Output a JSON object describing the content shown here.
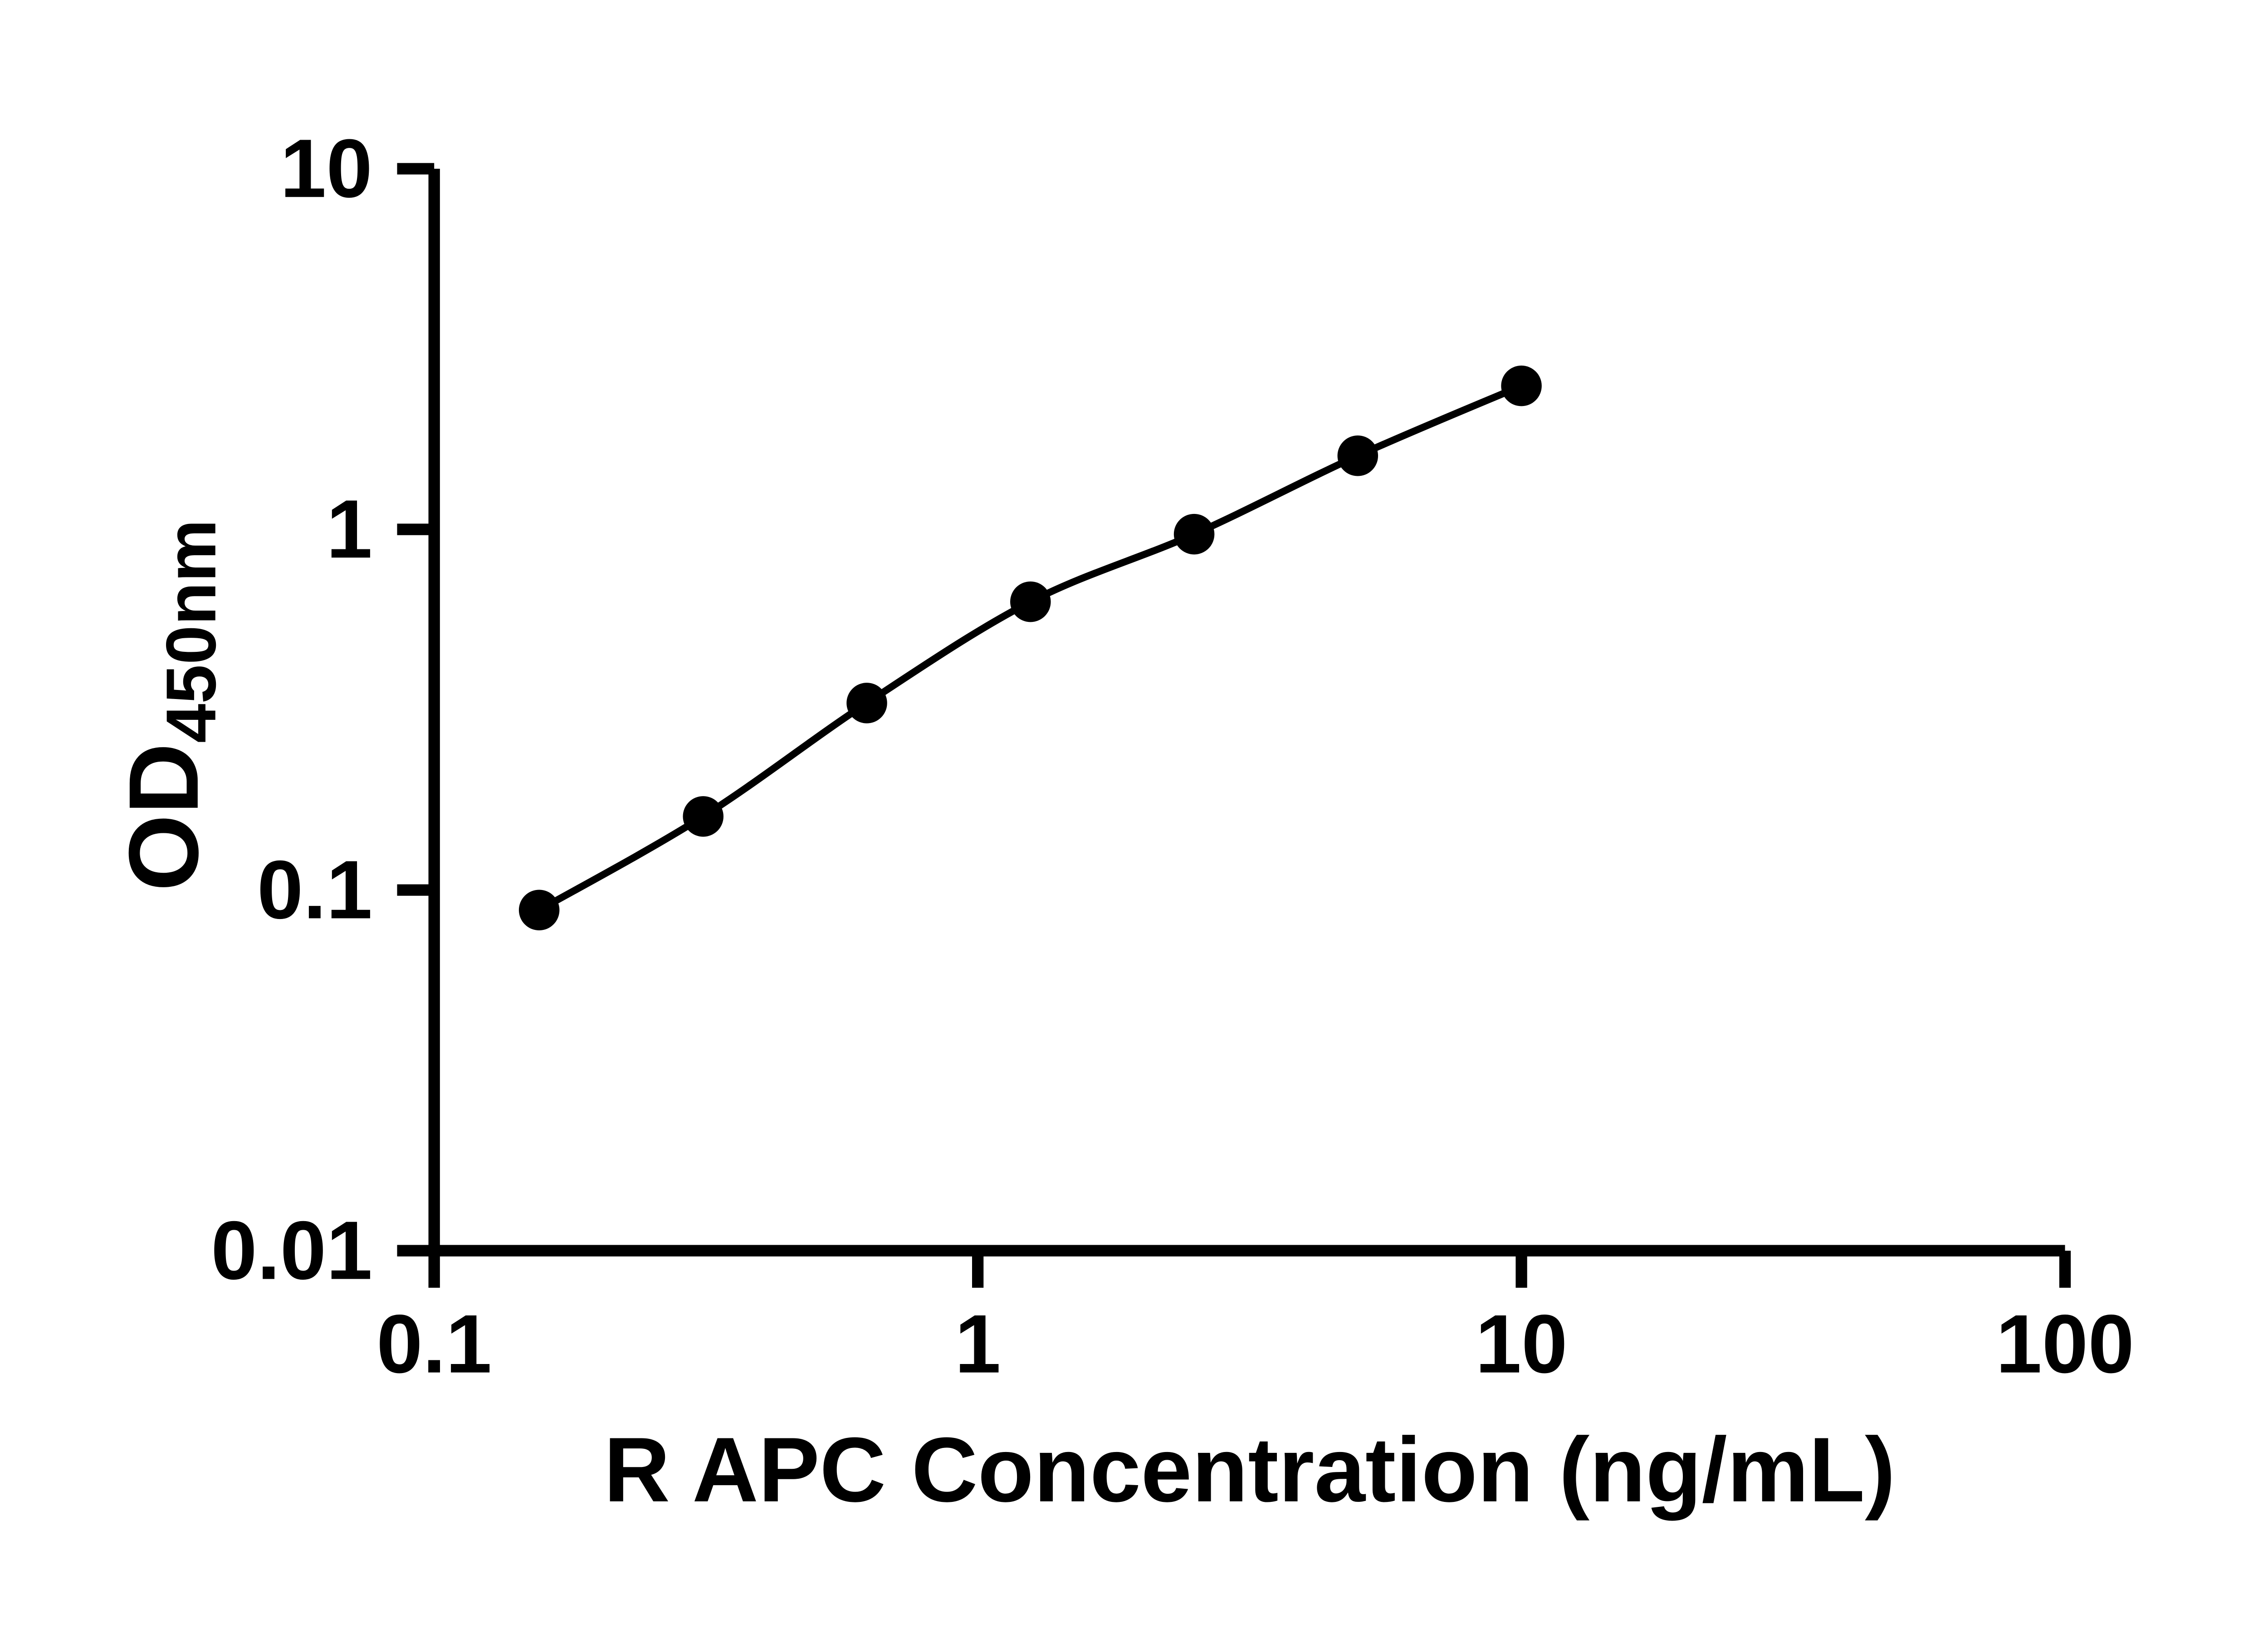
{
  "chart_data": {
    "type": "scatter",
    "title": "",
    "xlabel": "R APC Concentration (ng/mL)",
    "ylabel_main": "OD",
    "ylabel_sub": "450nm",
    "xscale": "log",
    "yscale": "log",
    "xlim": [
      0.1,
      100
    ],
    "ylim": [
      0.01,
      10
    ],
    "x_ticks": [
      0.1,
      1,
      10,
      100
    ],
    "x_tick_labels": [
      "0.1",
      "1",
      "10",
      "100"
    ],
    "y_ticks": [
      0.01,
      0.1,
      1,
      10
    ],
    "y_tick_labels": [
      "0.01",
      "0.1",
      "1",
      "10"
    ],
    "grid": false,
    "legend": "none",
    "marker": {
      "shape": "circle",
      "color": "#000000"
    },
    "line_color": "#000000",
    "axis_color": "#000000",
    "background_color": "#ffffff",
    "points": [
      {
        "x": 0.156,
        "y": 0.088
      },
      {
        "x": 0.3125,
        "y": 0.16
      },
      {
        "x": 0.625,
        "y": 0.33
      },
      {
        "x": 1.25,
        "y": 0.63
      },
      {
        "x": 2.5,
        "y": 0.97
      },
      {
        "x": 5,
        "y": 1.6
      },
      {
        "x": 10,
        "y": 2.5
      }
    ]
  }
}
